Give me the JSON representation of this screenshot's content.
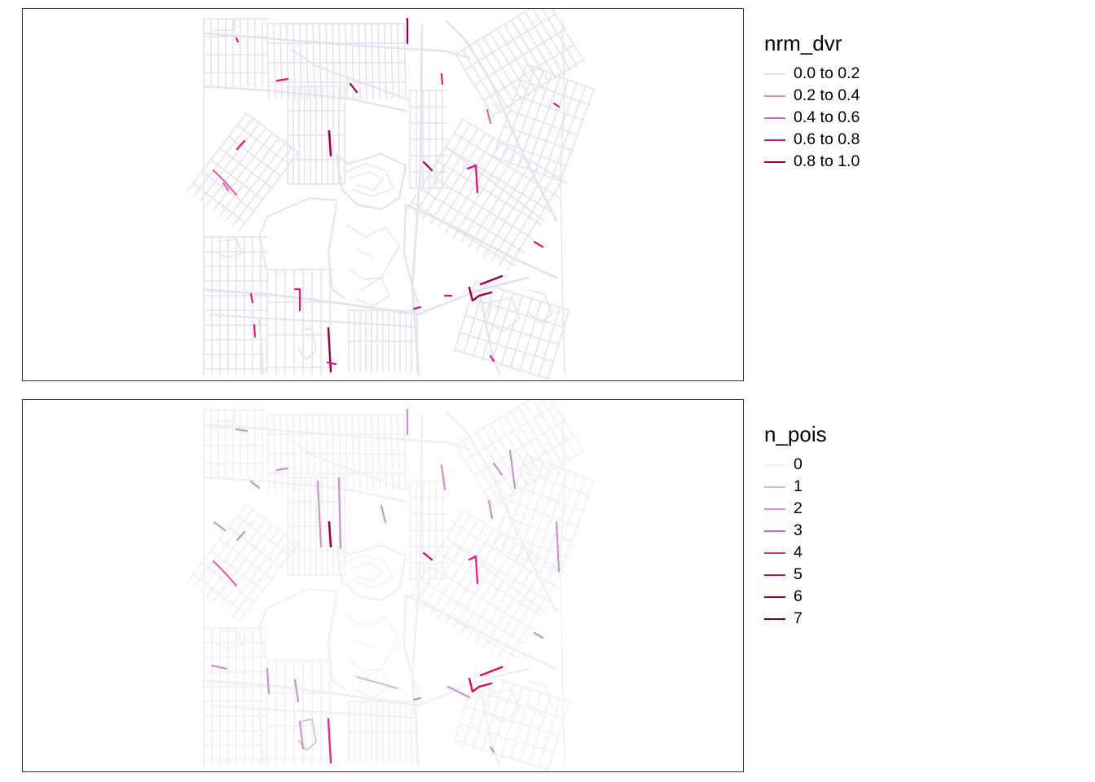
{
  "maps": [
    {
      "legend_title": "nrm_dvr",
      "legend_items": [
        {
          "label": "0.0 to 0.2",
          "color": "#e7e1ef"
        },
        {
          "label": "0.2 to 0.4",
          "color": "#c994c7"
        },
        {
          "label": "0.4 to 0.6",
          "color": "#df65b0"
        },
        {
          "label": "0.6 to 0.8",
          "color": "#dd1c77"
        },
        {
          "label": "0.8 to 1.0",
          "color": "#980043"
        }
      ]
    },
    {
      "legend_title": "n_pois",
      "legend_items": [
        {
          "label": "0",
          "color": "#f1eef6"
        },
        {
          "label": "1",
          "color": "#d4b9da"
        },
        {
          "label": "2",
          "color": "#c994c7"
        },
        {
          "label": "3",
          "color": "#df65b0"
        },
        {
          "label": "4",
          "color": "#e7298a"
        },
        {
          "label": "5",
          "color": "#ce1256"
        },
        {
          "label": "6",
          "color": "#980043"
        },
        {
          "label": "7",
          "color": "#67001f"
        }
      ]
    }
  ]
}
